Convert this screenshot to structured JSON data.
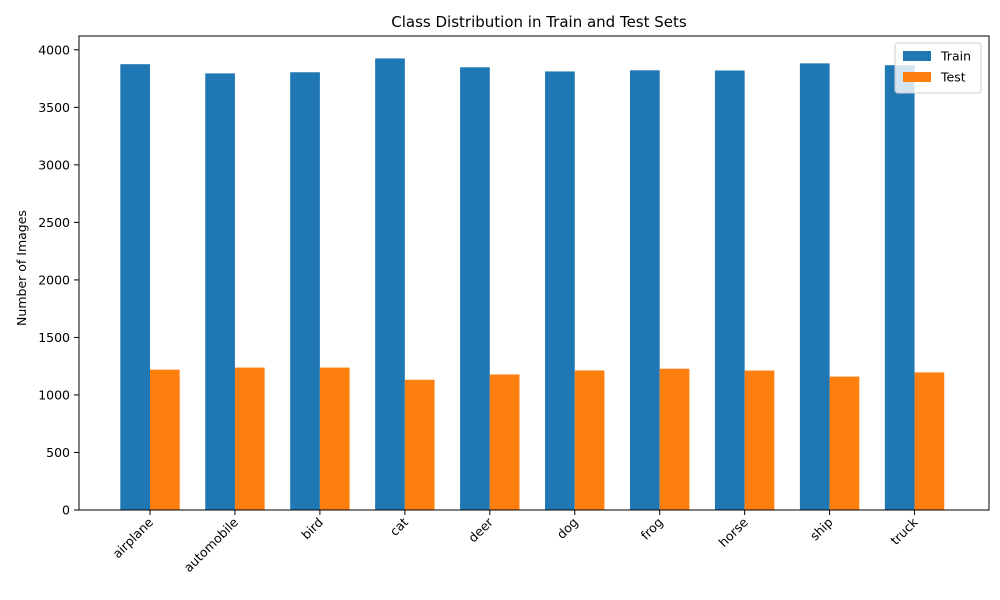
{
  "chart_data": {
    "type": "bar",
    "title": "Class Distribution in Train and Test Sets",
    "xlabel": "",
    "ylabel": "Number of Images",
    "ylim": [
      0,
      4120
    ],
    "yticks": [
      0,
      500,
      1000,
      1500,
      2000,
      2500,
      3000,
      3500,
      4000
    ],
    "grid": false,
    "legend_position": "top-right",
    "categories": [
      "airplane",
      "automobile",
      "bird",
      "cat",
      "deer",
      "dog",
      "frog",
      "horse",
      "ship",
      "truck"
    ],
    "series": [
      {
        "name": "Train",
        "color": "#1f77b4",
        "values": [
          3875,
          3795,
          3805,
          3925,
          3848,
          3812,
          3822,
          3820,
          3882,
          3866
        ]
      },
      {
        "name": "Test",
        "color": "#ff7f0e",
        "values": [
          1220,
          1238,
          1238,
          1132,
          1178,
          1213,
          1228,
          1212,
          1160,
          1196
        ]
      }
    ]
  }
}
